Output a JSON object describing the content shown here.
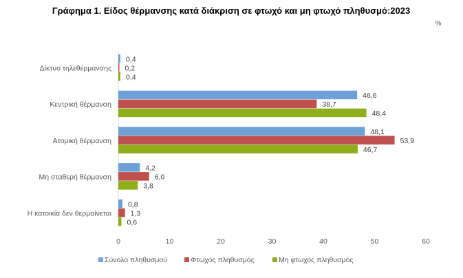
{
  "chart_data": {
    "type": "bar",
    "orientation": "horizontal",
    "title": "Γράφημα 1. Είδος θέρμανσης κατά διάκριση σε φτωχό και μη φτωχό πληθυσμό:2023",
    "unit_label": "%",
    "categories": [
      "Δίκτυο τηλεθέρμανσης",
      "Κεντρική θέρμανση",
      "Ατομική θέρμανση",
      "Μη σταθερή θέρμανση",
      "Η κατοικία δεν θερμαίνεται"
    ],
    "series": [
      {
        "name": "Σύνολο πληθυσμού",
        "color": "#6fa1d9",
        "values": [
          0.4,
          46.6,
          48.1,
          4.2,
          0.8
        ],
        "labels": [
          "0,4",
          "46,6",
          "48,1",
          "4,2",
          "0,8"
        ]
      },
      {
        "name": "Φτωχός πληθυσμός",
        "color": "#c0504d",
        "values": [
          0.2,
          38.7,
          53.9,
          6.0,
          1.3
        ],
        "labels": [
          "0,2",
          "38,7",
          "53,9",
          "6,0",
          "1,3"
        ]
      },
      {
        "name": "Μη φτωχός πληθυσμός",
        "color": "#8fae1b",
        "values": [
          0.4,
          48.4,
          46.7,
          3.8,
          0.6
        ],
        "labels": [
          "0,4",
          "48,4",
          "46,7",
          "3,8",
          "0,6"
        ]
      }
    ],
    "xlim": [
      0,
      60
    ],
    "xticks": [
      "0",
      "10",
      "20",
      "30",
      "40",
      "50",
      "60"
    ],
    "grid": false,
    "legend": "bottom"
  }
}
